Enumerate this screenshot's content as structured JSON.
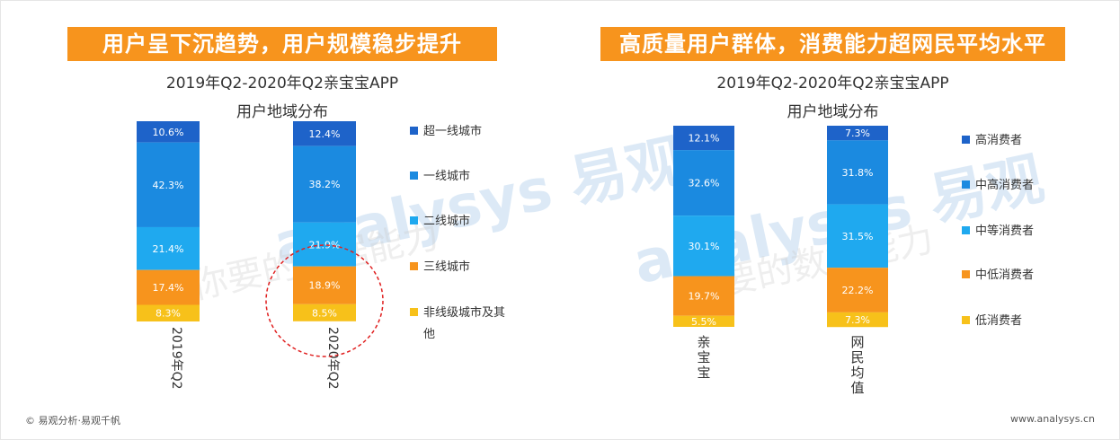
{
  "left_panel": {
    "banner": "用户呈下沉趋势，用户规模稳步提升",
    "subtitle_line1": "2019年Q2-2020年Q2亲宝宝APP",
    "subtitle_line2": "用户地域分布"
  },
  "right_panel": {
    "banner": "高质量用户群体，消费能力超网民平均水平",
    "subtitle_line1": "2019年Q2-2020年Q2亲宝宝APP",
    "subtitle_line2": "用户地域分布"
  },
  "watermark": {
    "brand_cn": "易观",
    "brand_en": "analysys",
    "slogan_left": "你要的数据能力",
    "slogan_right": "你要的数据能力"
  },
  "footer": {
    "left": "© 易观分析·易观千帆",
    "right": "www.analysys.cn"
  },
  "colors": {
    "banner": "#f7941d",
    "dark_blue": "#1e63c9",
    "mid_blue": "#1b8ae0",
    "light_blue": "#1fa9ef",
    "orange": "#f7941d",
    "yellow": "#f7c11a",
    "highlight_circle": "#e02020"
  },
  "chart_data": [
    {
      "type": "bar",
      "stacked": true,
      "percent": true,
      "categories": [
        "2019年Q2",
        "2020年Q2"
      ],
      "series": [
        {
          "name": "超一线城市",
          "values": [
            10.6,
            12.4
          ],
          "color": "#1e63c9"
        },
        {
          "name": "一线城市",
          "values": [
            42.3,
            38.2
          ],
          "color": "#1b8ae0"
        },
        {
          "name": "二线城市",
          "values": [
            21.4,
            21.9
          ],
          "color": "#1fa9ef"
        },
        {
          "name": "三线城市",
          "values": [
            17.4,
            18.9
          ],
          "color": "#f7941d"
        },
        {
          "name": "非线级城市及其他",
          "values": [
            8.3,
            8.5
          ],
          "color": "#f7c11a"
        }
      ],
      "legend_position": "right",
      "annotation": "red dashed circle around 2020年Q2 三线城市 and 非线级城市及其他 segments"
    },
    {
      "type": "bar",
      "stacked": true,
      "percent": true,
      "categories": [
        "亲宝宝",
        "网民均值"
      ],
      "series": [
        {
          "name": "高消费者",
          "values": [
            12.1,
            7.3
          ],
          "color": "#1e63c9"
        },
        {
          "name": "中高消费者",
          "values": [
            32.6,
            31.8
          ],
          "color": "#1b8ae0"
        },
        {
          "name": "中等消费者",
          "values": [
            30.1,
            31.5
          ],
          "color": "#1fa9ef"
        },
        {
          "name": "中低消费者",
          "values": [
            19.7,
            22.2
          ],
          "color": "#f7941d"
        },
        {
          "name": "低消费者",
          "values": [
            5.5,
            7.3
          ],
          "color": "#f7c11a"
        }
      ],
      "legend_position": "right"
    }
  ]
}
